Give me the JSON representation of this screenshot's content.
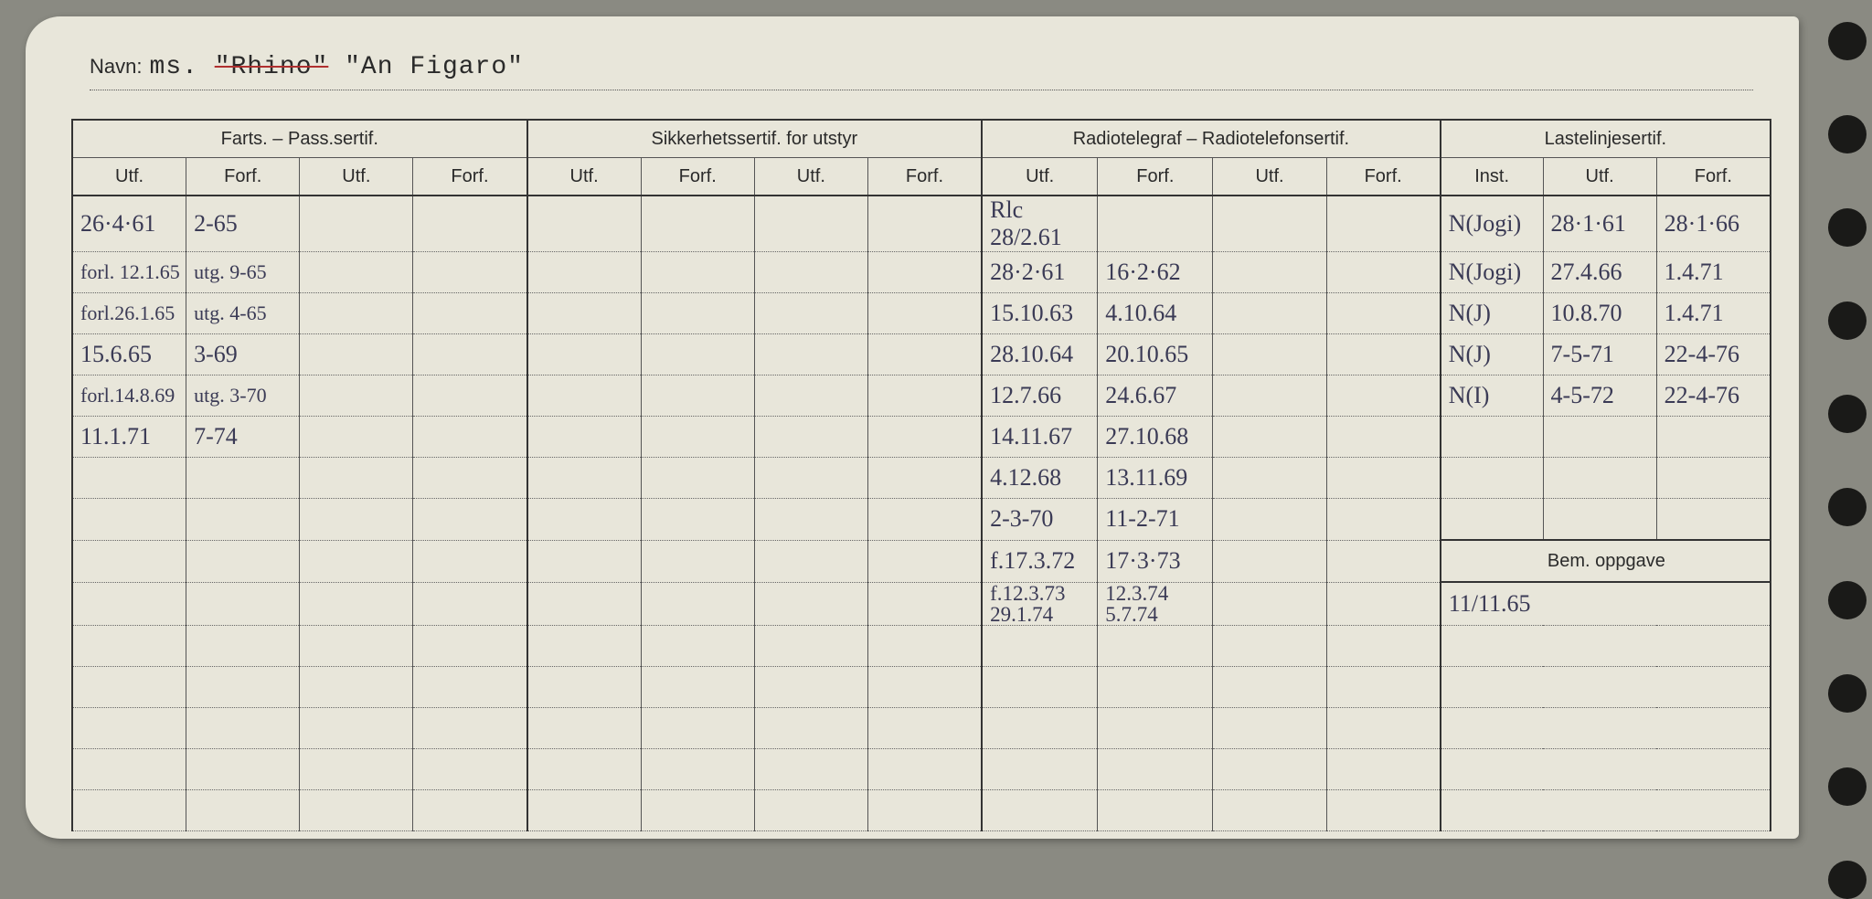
{
  "navn_label": "Navn:",
  "navn_prefix": "ms. ",
  "navn_struck": "\"Rhino\"",
  "navn_rest": " \"An Figaro\"",
  "header_groups": [
    "Farts. – Pass.sertif.",
    "Sikkerhetssertif. for utstyr",
    "Radiotelegraf – Radiotelefonsertif.",
    "Lastelinjesertif."
  ],
  "sub_headers": {
    "utf": "Utf.",
    "forf": "Forf.",
    "inst": "Inst."
  },
  "bem_header": "Bem. oppgave",
  "rows": [
    {
      "f1": "26·4·61",
      "f2": "2-65",
      "r1": "Rlc 28/2.61",
      "r2": "",
      "l1": "N(Jogi)",
      "l2": "28·1·61",
      "l3": "28·1·66"
    },
    {
      "f1": "forl. 12.1.65",
      "f2": "utg. 9-65",
      "f1_small": true,
      "r1": "28·2·61",
      "r2": "16·2·62",
      "l1": "N(Jogi)",
      "l2": "27.4.66",
      "l3": "1.4.71"
    },
    {
      "f1": "forl.26.1.65",
      "f2": "utg. 4-65",
      "f1_small": true,
      "r1": "15.10.63",
      "r2": "4.10.64",
      "l1": "N(J)",
      "l2": "10.8.70",
      "l3": "1.4.71"
    },
    {
      "f1": "15.6.65",
      "f2": "3-69",
      "r1": "28.10.64",
      "r2": "20.10.65",
      "l1": "N(J)",
      "l2": "7-5-71",
      "l3": "22-4-76"
    },
    {
      "f1": "forl.14.8.69",
      "f2": "utg. 3-70",
      "f1_small": true,
      "r1": "12.7.66",
      "r2": "24.6.67",
      "l1": "N(I)",
      "l2": "4-5-72",
      "l3": "22-4-76"
    },
    {
      "f1": "11.1.71",
      "f2": "7-74",
      "r1": "14.11.67",
      "r2": "27.10.68"
    },
    {
      "r1": "4.12.68",
      "r2": "13.11.69"
    },
    {
      "r1": "2-3-70",
      "r2": "11-2-71"
    },
    {
      "r1": "f.17.3.72",
      "r2": "17·3·73",
      "bem_header": true
    },
    {
      "r1_double": "f.12.3.73\n29.1.74",
      "r2_double": "12.3.74\n5.7.74",
      "bem": "11/11.65"
    },
    {},
    {},
    {},
    {},
    {}
  ],
  "colors": {
    "page_bg": "#8a8a82",
    "card_bg": "#e8e6da",
    "ink_blue": "#3a3a55",
    "ink_print": "#2a2a2a",
    "border": "#555",
    "border_heavy": "#333",
    "hole": "#1a1a18",
    "strike_red": "#b03030"
  },
  "holes_count": 10
}
